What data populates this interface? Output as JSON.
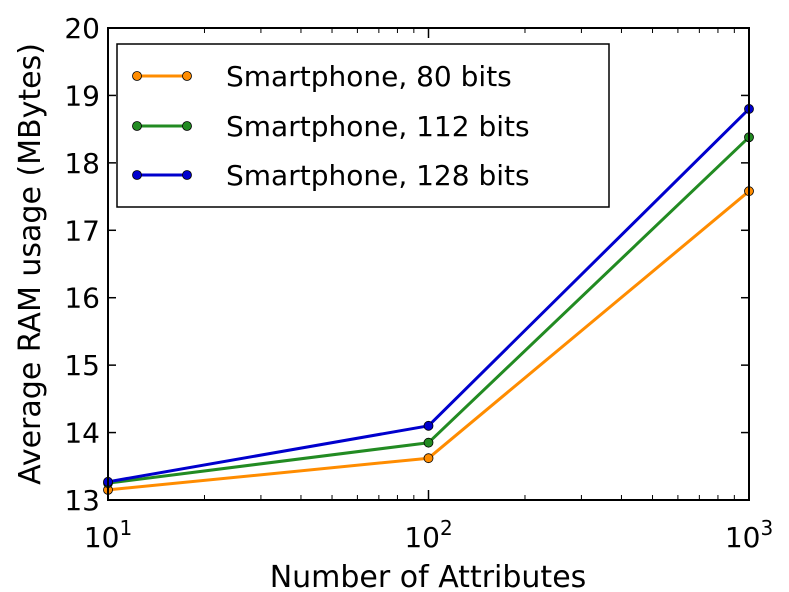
{
  "chart_data": {
    "type": "line",
    "xlabel": "Number of Attributes",
    "ylabel": "Average RAM usage (MBytes)",
    "x_scale": "log",
    "x": [
      10,
      100,
      1000
    ],
    "xlim": [
      10,
      1000
    ],
    "ylim": [
      13,
      20
    ],
    "x_ticks": [
      {
        "base": "10",
        "exp": "1"
      },
      {
        "base": "10",
        "exp": "2"
      },
      {
        "base": "10",
        "exp": "3"
      }
    ],
    "y_ticks": [
      "13",
      "14",
      "15",
      "16",
      "17",
      "18",
      "19",
      "20"
    ],
    "grid": false,
    "legend_position": "top-left",
    "series": [
      {
        "name": "Smartphone, 80 bits",
        "color": "#FF8C00",
        "values": [
          13.15,
          13.62,
          17.58
        ]
      },
      {
        "name": "Smartphone, 112 bits",
        "color": "#228B22",
        "values": [
          13.25,
          13.85,
          18.38
        ]
      },
      {
        "name": "Smartphone, 128 bits",
        "color": "#0000CD",
        "values": [
          13.27,
          14.1,
          18.8
        ]
      }
    ]
  }
}
